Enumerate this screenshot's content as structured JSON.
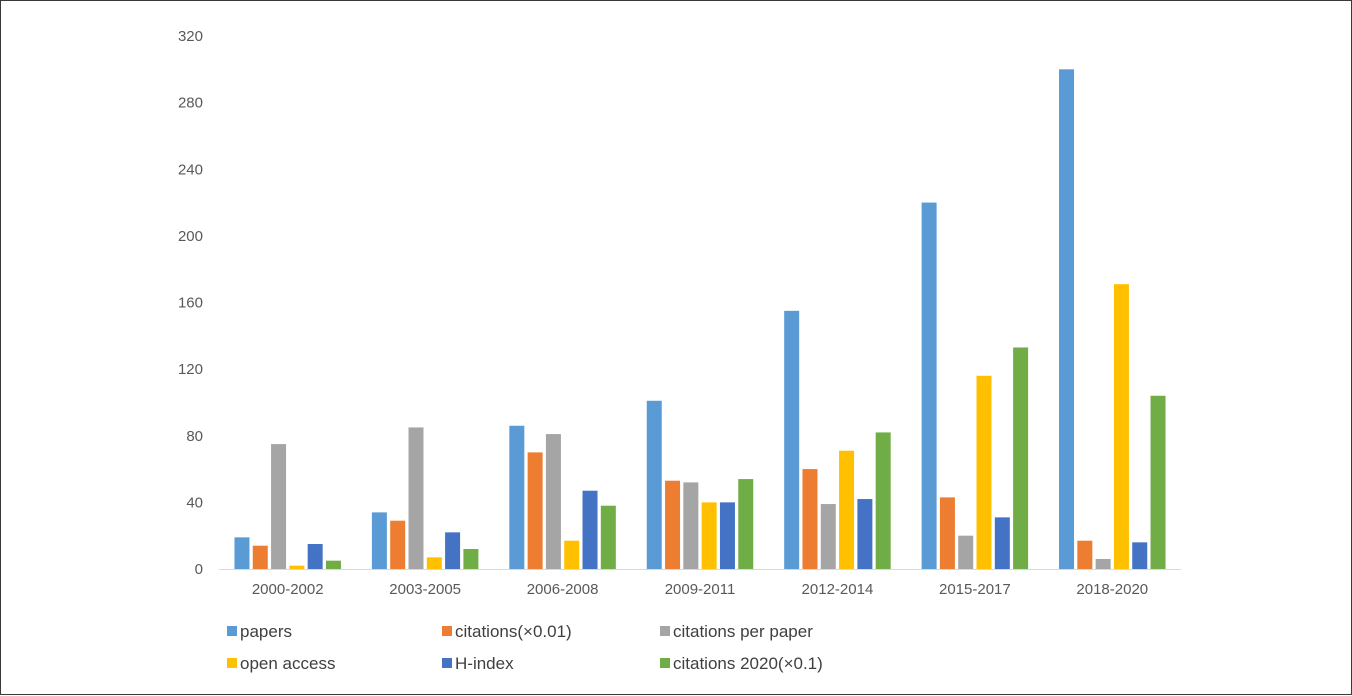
{
  "chart_data": {
    "type": "bar",
    "title": "",
    "xlabel": "",
    "ylabel": "",
    "ylim": [
      0,
      320
    ],
    "yticks": [
      0,
      40,
      80,
      120,
      160,
      200,
      240,
      280,
      320
    ],
    "grid": false,
    "legend_position": "bottom",
    "categories": [
      "2000-2002",
      "2003-2005",
      "2006-2008",
      "2009-2011",
      "2012-2014",
      "2015-2017",
      "2018-2020"
    ],
    "series": [
      {
        "name": "papers",
        "color": "#5b9bd5",
        "values": [
          19,
          34,
          86,
          101,
          155,
          220,
          300
        ]
      },
      {
        "name": "citations(×0.01)",
        "color": "#ed7d31",
        "values": [
          14,
          29,
          70,
          53,
          60,
          43,
          17
        ]
      },
      {
        "name": "citations per paper",
        "color": "#a5a5a5",
        "values": [
          75,
          85,
          81,
          52,
          39,
          20,
          6
        ]
      },
      {
        "name": "open access",
        "color": "#ffc000",
        "values": [
          2,
          7,
          17,
          40,
          71,
          116,
          171
        ]
      },
      {
        "name": "H-index",
        "color": "#4472c4",
        "values": [
          15,
          22,
          47,
          40,
          42,
          31,
          16
        ]
      },
      {
        "name": "citations 2020(×0.1)",
        "color": "#70ad47",
        "values": [
          5,
          12,
          38,
          54,
          82,
          133,
          104
        ]
      }
    ]
  }
}
